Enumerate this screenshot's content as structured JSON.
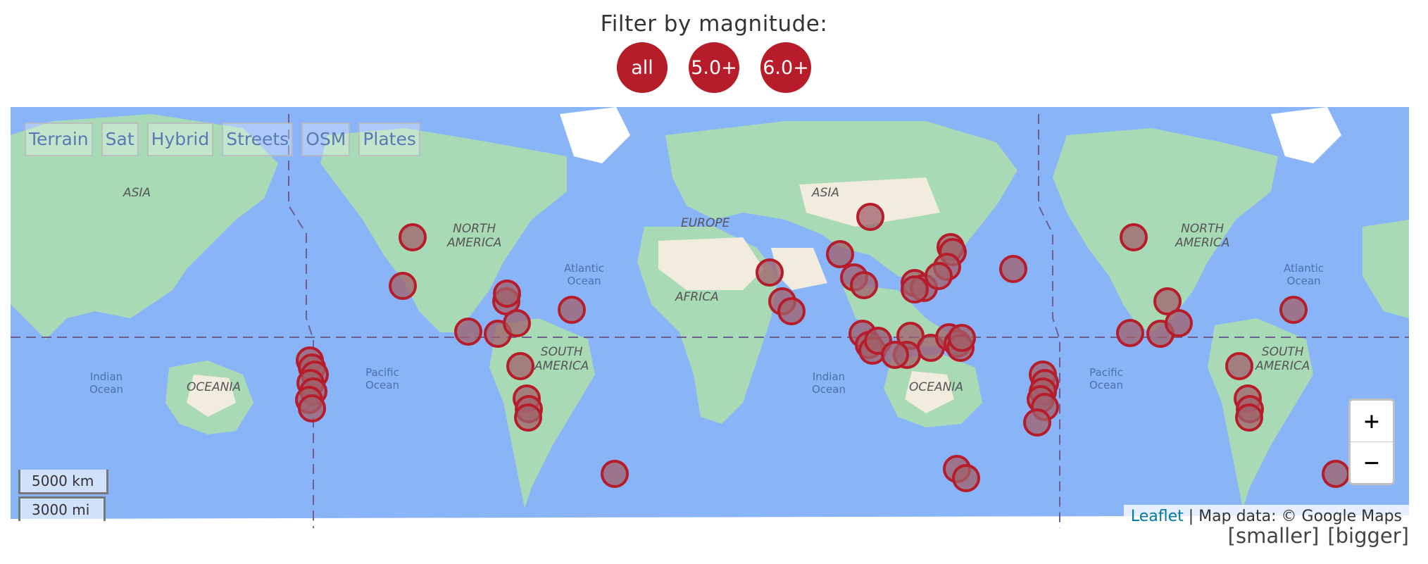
{
  "filter": {
    "label": "Filter by magnitude:",
    "buttons": [
      "all",
      "5.0+",
      "6.0+"
    ]
  },
  "map": {
    "layers": [
      "Terrain",
      "Sat",
      "Hybrid",
      "Streets",
      "OSM",
      "Plates"
    ],
    "labels": {
      "asia": "ASIA",
      "north_america": [
        "NORTH",
        "AMERICA"
      ],
      "europe": "EUROPE",
      "africa": "AFRICA",
      "south_america": [
        "SOUTH",
        "AMERICA"
      ],
      "oceania": "OCEANIA",
      "atlantic_ocean": [
        "Atlantic",
        "Ocean"
      ],
      "pacific_ocean": [
        "Pacific",
        "Ocean"
      ],
      "indian_ocean": [
        "Indian",
        "Ocean"
      ]
    },
    "zoom_in": "+",
    "zoom_out": "−",
    "scale": {
      "km": "5000 km",
      "mi": "3000 mi"
    },
    "attribution": {
      "leaflet": "Leaflet",
      "text": " | Map data: © Google Maps"
    },
    "colors": {
      "ocean": "#8ab4f8",
      "land": "#a8dab5",
      "desert": "#f1ecdd",
      "ice": "#ffffff",
      "marker": "#b71c2a",
      "marker_fill": "#a0606a"
    }
  },
  "sizer": {
    "smaller": "[smaller]",
    "bigger": "[bigger]"
  }
}
